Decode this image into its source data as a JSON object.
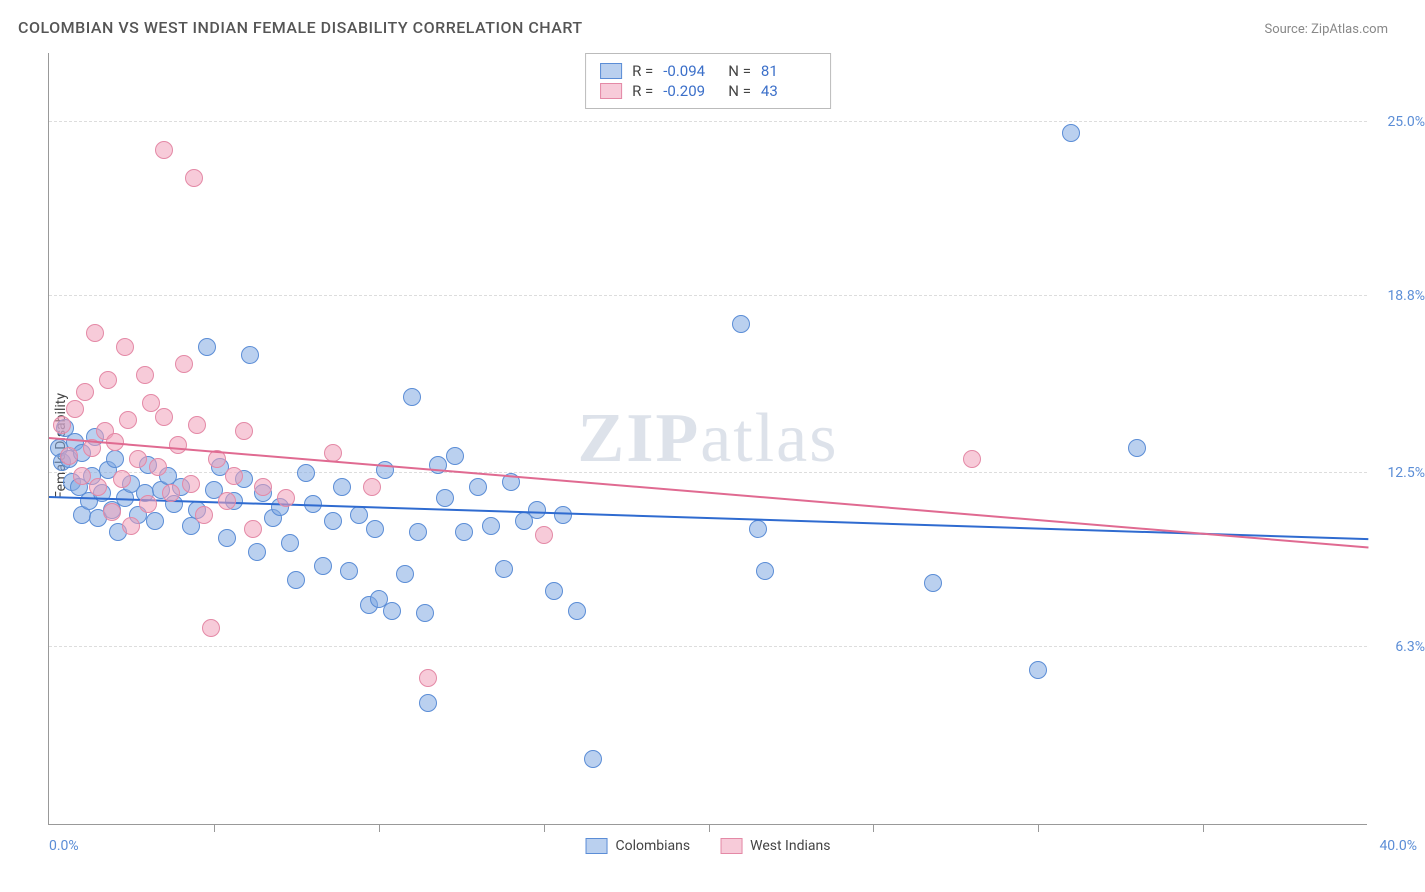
{
  "header": {
    "title": "COLOMBIAN VS WEST INDIAN FEMALE DISABILITY CORRELATION CHART",
    "source_prefix": "Source: ",
    "source_name": "ZipAtlas.com"
  },
  "chart": {
    "type": "scatter",
    "ylabel": "Female Disability",
    "watermark_bold": "ZIP",
    "watermark_rest": "atlas",
    "xlim": [
      0,
      40
    ],
    "ylim": [
      0,
      27.5
    ],
    "x_min_label": "0.0%",
    "x_max_label": "40.0%",
    "y_ticks": [
      6.3,
      12.5,
      18.8,
      25.0
    ],
    "y_tick_labels": [
      "6.3%",
      "12.5%",
      "18.8%",
      "25.0%"
    ],
    "x_ticks": [
      5,
      10,
      15,
      20,
      25,
      30,
      35
    ],
    "grid_color": "#dddddd",
    "axis_color": "#999999",
    "background": "#ffffff",
    "marker_radius": 9,
    "series": [
      {
        "name": "Colombians",
        "fill": "rgba(130,170,225,0.55)",
        "stroke": "#5b8dd6",
        "trend_color": "#2f6bd0",
        "R": "-0.094",
        "N": "81",
        "trend": {
          "x0": 0,
          "y0": 11.6,
          "x1": 40,
          "y1": 10.1
        },
        "points": [
          [
            0.3,
            13.4
          ],
          [
            0.4,
            12.9
          ],
          [
            0.5,
            14.1
          ],
          [
            0.6,
            13.0
          ],
          [
            0.7,
            12.2
          ],
          [
            0.8,
            13.6
          ],
          [
            0.9,
            12.0
          ],
          [
            1.0,
            13.2
          ],
          [
            1.0,
            11.0
          ],
          [
            1.2,
            11.5
          ],
          [
            1.3,
            12.4
          ],
          [
            1.4,
            13.8
          ],
          [
            1.5,
            10.9
          ],
          [
            1.6,
            11.8
          ],
          [
            1.8,
            12.6
          ],
          [
            1.9,
            11.2
          ],
          [
            2.0,
            13.0
          ],
          [
            2.1,
            10.4
          ],
          [
            2.3,
            11.6
          ],
          [
            2.5,
            12.1
          ],
          [
            2.7,
            11.0
          ],
          [
            2.9,
            11.8
          ],
          [
            3.0,
            12.8
          ],
          [
            3.2,
            10.8
          ],
          [
            3.4,
            11.9
          ],
          [
            3.6,
            12.4
          ],
          [
            3.8,
            11.4
          ],
          [
            4.0,
            12.0
          ],
          [
            4.3,
            10.6
          ],
          [
            4.5,
            11.2
          ],
          [
            4.8,
            17.0
          ],
          [
            5.0,
            11.9
          ],
          [
            5.2,
            12.7
          ],
          [
            5.4,
            10.2
          ],
          [
            5.6,
            11.5
          ],
          [
            5.9,
            12.3
          ],
          [
            6.1,
            16.7
          ],
          [
            6.3,
            9.7
          ],
          [
            6.5,
            11.8
          ],
          [
            6.8,
            10.9
          ],
          [
            7.0,
            11.3
          ],
          [
            7.3,
            10.0
          ],
          [
            7.5,
            8.7
          ],
          [
            7.8,
            12.5
          ],
          [
            8.0,
            11.4
          ],
          [
            8.3,
            9.2
          ],
          [
            8.6,
            10.8
          ],
          [
            8.9,
            12.0
          ],
          [
            9.1,
            9.0
          ],
          [
            9.4,
            11.0
          ],
          [
            9.7,
            7.8
          ],
          [
            9.9,
            10.5
          ],
          [
            10.0,
            8.0
          ],
          [
            10.2,
            12.6
          ],
          [
            10.4,
            7.6
          ],
          [
            10.8,
            8.9
          ],
          [
            11.0,
            15.2
          ],
          [
            11.2,
            10.4
          ],
          [
            11.4,
            7.5
          ],
          [
            11.5,
            4.3
          ],
          [
            11.8,
            12.8
          ],
          [
            12.0,
            11.6
          ],
          [
            12.3,
            13.1
          ],
          [
            12.6,
            10.4
          ],
          [
            13.0,
            12.0
          ],
          [
            13.4,
            10.6
          ],
          [
            13.8,
            9.1
          ],
          [
            14.0,
            12.2
          ],
          [
            14.4,
            10.8
          ],
          [
            14.8,
            11.2
          ],
          [
            15.3,
            8.3
          ],
          [
            15.6,
            11.0
          ],
          [
            16.0,
            7.6
          ],
          [
            16.5,
            2.3
          ],
          [
            21.0,
            17.8
          ],
          [
            21.5,
            10.5
          ],
          [
            21.7,
            9.0
          ],
          [
            26.8,
            8.6
          ],
          [
            30.0,
            5.5
          ],
          [
            31.0,
            24.6
          ],
          [
            33.0,
            13.4
          ]
        ]
      },
      {
        "name": "West Indians",
        "fill": "rgba(240,160,185,0.55)",
        "stroke": "#e489a6",
        "trend_color": "#e06a91",
        "R": "-0.209",
        "N": "43",
        "trend": {
          "x0": 0,
          "y0": 13.7,
          "x1": 40,
          "y1": 9.8
        },
        "points": [
          [
            0.4,
            14.2
          ],
          [
            0.6,
            13.1
          ],
          [
            0.8,
            14.8
          ],
          [
            1.0,
            12.4
          ],
          [
            1.1,
            15.4
          ],
          [
            1.3,
            13.4
          ],
          [
            1.4,
            17.5
          ],
          [
            1.5,
            12.0
          ],
          [
            1.7,
            14.0
          ],
          [
            1.8,
            15.8
          ],
          [
            1.9,
            11.1
          ],
          [
            2.0,
            13.6
          ],
          [
            2.2,
            12.3
          ],
          [
            2.3,
            17.0
          ],
          [
            2.4,
            14.4
          ],
          [
            2.5,
            10.6
          ],
          [
            2.7,
            13.0
          ],
          [
            2.9,
            16.0
          ],
          [
            3.0,
            11.4
          ],
          [
            3.1,
            15.0
          ],
          [
            3.3,
            12.7
          ],
          [
            3.5,
            14.5
          ],
          [
            3.5,
            24.0
          ],
          [
            3.7,
            11.8
          ],
          [
            3.9,
            13.5
          ],
          [
            4.1,
            16.4
          ],
          [
            4.3,
            12.1
          ],
          [
            4.4,
            23.0
          ],
          [
            4.5,
            14.2
          ],
          [
            4.7,
            11.0
          ],
          [
            4.9,
            7.0
          ],
          [
            5.1,
            13.0
          ],
          [
            5.4,
            11.5
          ],
          [
            5.6,
            12.4
          ],
          [
            5.9,
            14.0
          ],
          [
            6.2,
            10.5
          ],
          [
            6.5,
            12.0
          ],
          [
            7.2,
            11.6
          ],
          [
            8.6,
            13.2
          ],
          [
            9.8,
            12.0
          ],
          [
            11.5,
            5.2
          ],
          [
            15.0,
            10.3
          ],
          [
            28.0,
            13.0
          ]
        ]
      }
    ],
    "statbox": {
      "R_label": "R =",
      "N_label": "N ="
    },
    "bottom_legend": [
      {
        "label": "Colombians",
        "fill": "rgba(130,170,225,0.55)",
        "stroke": "#5b8dd6"
      },
      {
        "label": "West Indians",
        "fill": "rgba(240,160,185,0.55)",
        "stroke": "#e489a6"
      }
    ]
  }
}
